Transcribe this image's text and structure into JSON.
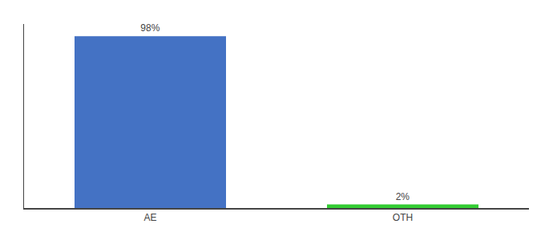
{
  "chart_data": {
    "type": "bar",
    "categories": [
      "AE",
      "OTH"
    ],
    "values": [
      98,
      2
    ],
    "value_labels": [
      "98%",
      "2%"
    ],
    "colors": [
      "#4472C4",
      "#33CC33"
    ],
    "ylim": [
      0,
      105
    ],
    "data_labels": true,
    "tick_labels": "x",
    "grid": false
  }
}
